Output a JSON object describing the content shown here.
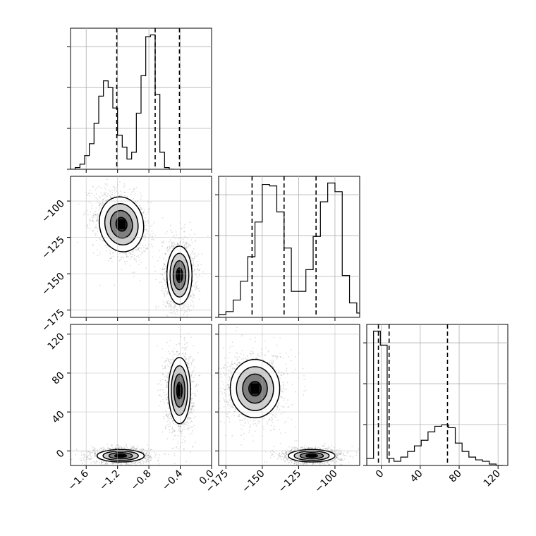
{
  "chart_data": {
    "type": "corner",
    "parameters": [
      {
        "range": [
          -1.8,
          0.0
        ],
        "tick_labels": [
          "−1.6",
          "−1.2",
          "−0.8",
          "−0.4",
          "0.0"
        ],
        "tick_values": [
          -1.6,
          -1.2,
          -0.8,
          -0.4,
          0.0
        ],
        "quantiles": [
          -1.21,
          -0.72,
          -0.41
        ],
        "histogram": {
          "start": -1.8,
          "bin_width": 0.06,
          "counts": [
            0,
            0.01,
            0.03,
            0.08,
            0.15,
            0.27,
            0.43,
            0.52,
            0.48,
            0.36,
            0.2,
            0.13,
            0.06,
            0.1,
            0.33,
            0.55,
            0.78,
            0.79,
            0.44,
            0.1,
            0.01,
            0
          ]
        }
      },
      {
        "range": [
          -180,
          -83
        ],
        "tick_labels": [
          "−175",
          "−150",
          "−125",
          "−100"
        ],
        "tick_values": [
          -175,
          -150,
          -125,
          -100
        ],
        "quantiles": [
          -157,
          -135,
          -113
        ],
        "histogram": {
          "start": -180,
          "bin_width": 5,
          "counts": [
            0.02,
            0.04,
            0.12,
            0.25,
            0.42,
            0.66,
            0.92,
            0.91,
            0.73,
            0.48,
            0.18,
            0.18,
            0.33,
            0.56,
            0.8,
            0.93,
            0.87,
            0.29,
            0.1,
            0.03,
            0.01
          ]
        }
      },
      {
        "range": [
          -15,
          130
        ],
        "tick_labels": [
          "0",
          "40",
          "80",
          "120"
        ],
        "tick_values": [
          0,
          40,
          80,
          120
        ],
        "quantiles": [
          -3,
          8,
          68
        ],
        "histogram": {
          "start": -15,
          "bin_width": 7,
          "counts": [
            0.05,
            0.96,
            0.86,
            0.05,
            0.03,
            0.06,
            0.1,
            0.14,
            0.18,
            0.24,
            0.28,
            0.29,
            0.27,
            0.16,
            0.1,
            0.06,
            0.04,
            0.03,
            0.01,
            0.0
          ]
        }
      }
    ],
    "pairs": [
      {
        "x_param": 0,
        "y_param": 1,
        "modes": [
          {
            "x": -1.15,
            "y": -116,
            "sx": 0.14,
            "sy": 9.5,
            "rho": -0.3,
            "weight": 0.5
          },
          {
            "x": -0.41,
            "y": -151,
            "sx": 0.08,
            "sy": 10,
            "rho": 0.0,
            "weight": 0.5
          }
        ]
      },
      {
        "x_param": 0,
        "y_param": 2,
        "modes": [
          {
            "x": -1.16,
            "y": -5,
            "sx": 0.15,
            "sy": 3.2,
            "rho": 0.0,
            "weight": 0.5
          },
          {
            "x": -0.41,
            "y": 62,
            "sx": 0.07,
            "sy": 17,
            "rho": 0.0,
            "weight": 0.5
          }
        ]
      },
      {
        "x_param": 1,
        "y_param": 2,
        "modes": [
          {
            "x": -155,
            "y": 64,
            "sx": 8.5,
            "sy": 15,
            "rho": 0.0,
            "weight": 0.5
          },
          {
            "x": -116,
            "y": -5,
            "sx": 8,
            "sy": 3.2,
            "rho": 0.0,
            "weight": 0.5
          }
        ]
      }
    ],
    "contour_levels": [
      0.5,
      1.0,
      1.5,
      2.0
    ],
    "grid": true,
    "colors": {
      "line": "#000000",
      "grid": "#b0b0b0",
      "density": "#000000"
    }
  }
}
